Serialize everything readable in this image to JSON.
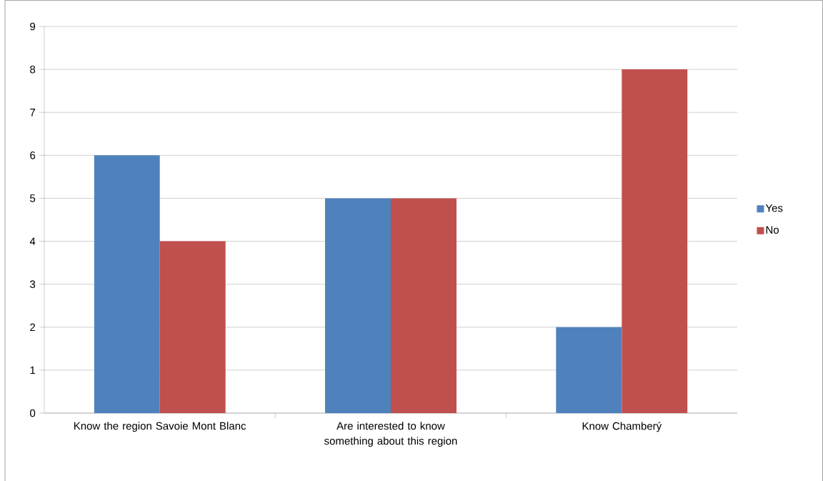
{
  "chart_data": {
    "type": "bar",
    "categories": [
      "Know the region Savoie Mont Blanc",
      "Are interested to know something about this region",
      "Know Chamberý"
    ],
    "series": [
      {
        "name": "Yes",
        "color": "#4f81bd",
        "values": [
          6,
          5,
          2
        ]
      },
      {
        "name": "No",
        "color": "#c0504d",
        "values": [
          4,
          5,
          8
        ]
      }
    ],
    "ylim": [
      0,
      9
    ],
    "yticks": [
      0,
      1,
      2,
      3,
      4,
      5,
      6,
      7,
      8,
      9
    ],
    "grid": "y",
    "legend": "right"
  }
}
